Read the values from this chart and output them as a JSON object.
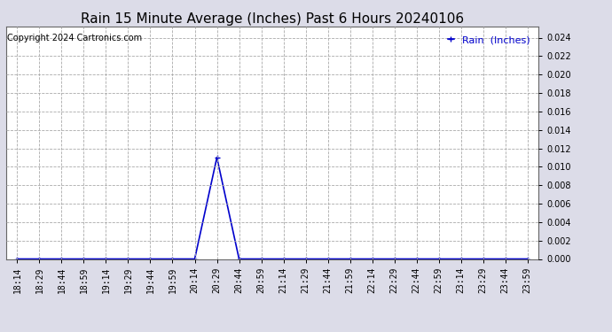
{
  "title": "Rain 15 Minute Average (Inches) Past 6 Hours 20240106",
  "copyright_text": "Copyright 2024 Cartronics.com",
  "legend_label": "Rain  (Inches)",
  "line_color": "#0000cc",
  "background_color": "#dcdce8",
  "plot_bg_color": "#ffffff",
  "grid_color": "#aaaaaa",
  "grid_style": "--",
  "ylim": [
    0.0,
    0.0252
  ],
  "yticks": [
    0.0,
    0.002,
    0.004,
    0.006,
    0.008,
    0.01,
    0.012,
    0.014,
    0.016,
    0.018,
    0.02,
    0.022,
    0.024
  ],
  "x_labels": [
    "18:14",
    "18:29",
    "18:44",
    "18:59",
    "19:14",
    "19:29",
    "19:44",
    "19:59",
    "20:14",
    "20:29",
    "20:44",
    "20:59",
    "21:14",
    "21:29",
    "21:44",
    "21:59",
    "22:14",
    "22:29",
    "22:44",
    "22:59",
    "23:14",
    "23:29",
    "23:44",
    "23:59"
  ],
  "rain_values": [
    0.0,
    0.0,
    0.0,
    0.0,
    0.0,
    0.0,
    0.0,
    0.0,
    0.0,
    0.011,
    0.0,
    0.0,
    0.0,
    0.0,
    0.0,
    0.0,
    0.0,
    0.0,
    0.0,
    0.0,
    0.0,
    0.0,
    0.0,
    0.0
  ],
  "marker": "+",
  "marker_size": 4,
  "linewidth": 1.2,
  "title_fontsize": 11,
  "tick_fontsize": 7,
  "ytick_fontsize": 7,
  "copyright_fontsize": 7,
  "legend_fontsize": 8
}
